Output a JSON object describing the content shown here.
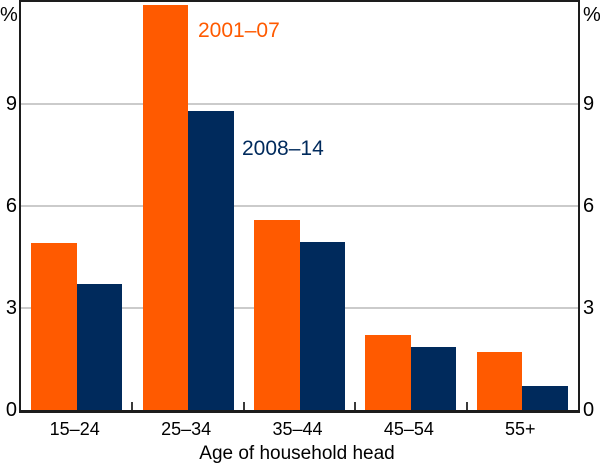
{
  "chart_data": {
    "type": "bar",
    "title": "",
    "categories": [
      "15–24",
      "25–34",
      "35–44",
      "45–54",
      "55+"
    ],
    "series": [
      {
        "name": "2001–07",
        "color": "#FF5A00",
        "values": [
          4.9,
          11.9,
          5.6,
          2.2,
          1.7
        ]
      },
      {
        "name": "2008–14",
        "color": "#002A5C",
        "values": [
          3.7,
          8.8,
          4.95,
          1.85,
          0.7
        ]
      }
    ],
    "xlabel": "Age of household head",
    "unit": "%",
    "ylim": [
      0,
      12
    ],
    "yticks": [
      0,
      3,
      6,
      9
    ],
    "grid": "horizontal",
    "legend_position": "inline-annotations"
  },
  "colors": {
    "gridline": "#CBCBCB",
    "axis": "#1D1D1D",
    "text": "#000000"
  }
}
